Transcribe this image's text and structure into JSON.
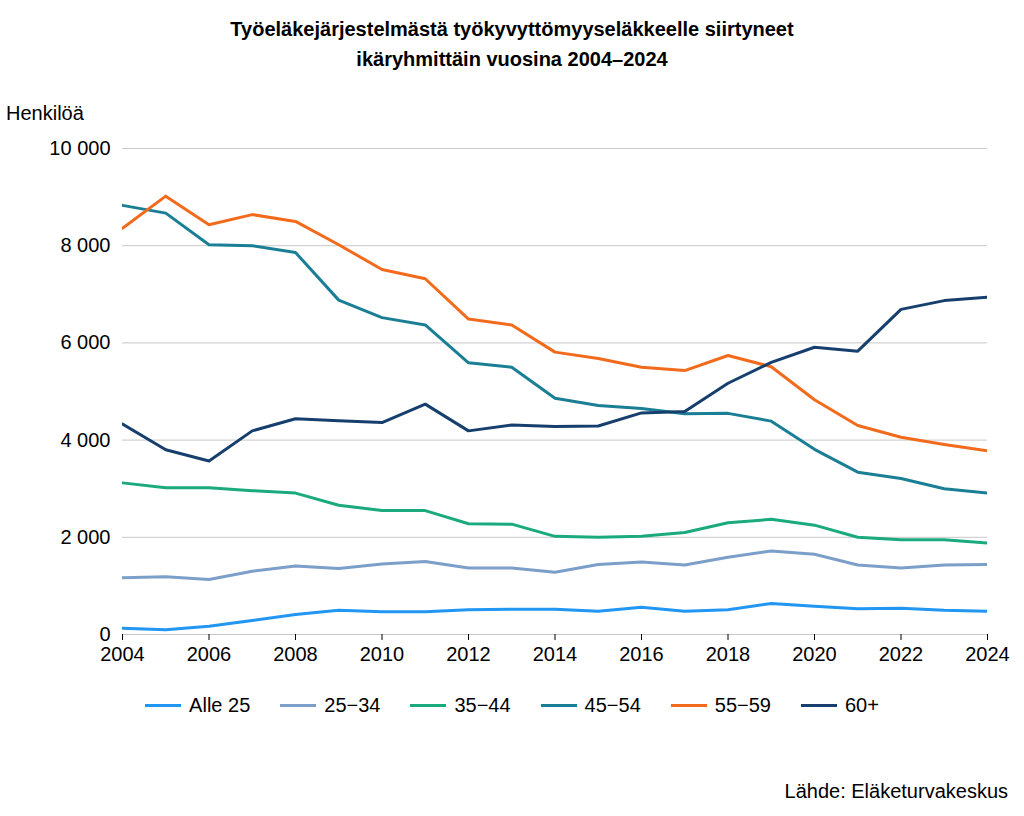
{
  "chart_data": {
    "type": "line",
    "title": "Työeläkejärjestelmästä työkyvyttömyyseläkkeelle siirtyneet\nikäryhmittäin vuosina 2004–2024",
    "y_label": "Henkilöä",
    "source": "Lähde: Eläketurvakeskus",
    "x": [
      2004,
      2005,
      2006,
      2007,
      2008,
      2009,
      2010,
      2011,
      2012,
      2013,
      2014,
      2015,
      2016,
      2017,
      2018,
      2019,
      2020,
      2021,
      2022,
      2023,
      2024
    ],
    "xlim": [
      2004,
      2024
    ],
    "xticks": [
      2004,
      2006,
      2008,
      2010,
      2012,
      2014,
      2016,
      2018,
      2020,
      2022,
      2024
    ],
    "ylim": [
      0,
      10000
    ],
    "yticks": [
      0,
      {
        "value": 2000,
        "label": "2 000"
      },
      {
        "value": 4000,
        "label": "4 000"
      },
      {
        "value": 6000,
        "label": "6 000"
      },
      {
        "value": 8000,
        "label": "8 000"
      },
      {
        "value": 10000,
        "label": "10 000"
      }
    ],
    "grid": true,
    "legend": "bottom",
    "series": [
      {
        "name": "Alle 25",
        "color": "#2196f3",
        "values": [
          130,
          100,
          170,
          290,
          410,
          500,
          470,
          470,
          510,
          520,
          520,
          480,
          560,
          480,
          510,
          640,
          580,
          530,
          540,
          500,
          480
        ]
      },
      {
        "name": "25−34",
        "color": "#7b9fc8",
        "values": [
          1170,
          1190,
          1130,
          1300,
          1410,
          1360,
          1450,
          1500,
          1370,
          1370,
          1280,
          1440,
          1490,
          1430,
          1590,
          1720,
          1650,
          1430,
          1370,
          1430,
          1440
        ]
      },
      {
        "name": "35−44",
        "color": "#1aaa7d",
        "values": [
          3120,
          3020,
          3020,
          2960,
          2910,
          2660,
          2550,
          2550,
          2280,
          2270,
          2020,
          2000,
          2020,
          2100,
          2300,
          2370,
          2250,
          2000,
          1950,
          1950,
          1880
        ]
      },
      {
        "name": "45−54",
        "color": "#1a7f95",
        "values": [
          8830,
          8670,
          8020,
          8000,
          7860,
          6880,
          6520,
          6370,
          5590,
          5500,
          4860,
          4710,
          4650,
          4540,
          4550,
          4390,
          3810,
          3340,
          3210,
          3000,
          2910
        ]
      },
      {
        "name": "55−59",
        "color": "#f26b1d",
        "values": [
          8360,
          9020,
          8430,
          8640,
          8500,
          8020,
          7510,
          7320,
          6490,
          6370,
          5810,
          5680,
          5500,
          5430,
          5740,
          5510,
          4830,
          4300,
          4060,
          3910,
          3780
        ]
      },
      {
        "name": "60+",
        "color": "#173f6e",
        "values": [
          4330,
          3800,
          3570,
          4190,
          4440,
          4400,
          4360,
          4740,
          4190,
          4310,
          4280,
          4290,
          4560,
          4590,
          5170,
          5600,
          5910,
          5830,
          6690,
          6870,
          6940
        ]
      }
    ]
  }
}
